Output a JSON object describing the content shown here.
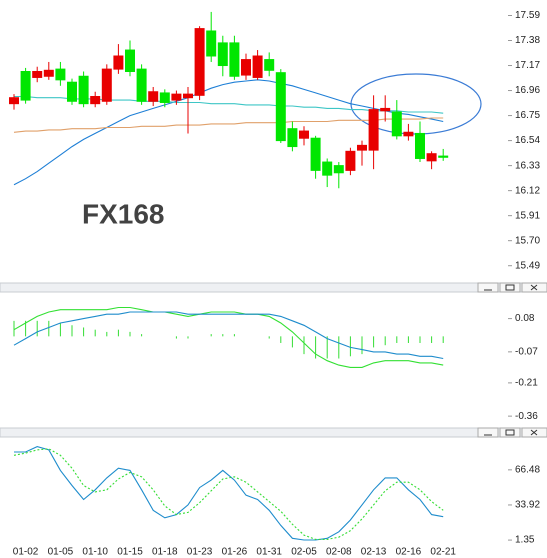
{
  "chart_data": [
    {
      "type": "candlestick",
      "watermark": "FX168",
      "ylim": [
        15.37,
        17.72
      ],
      "yticks": [
        17.59,
        17.38,
        17.17,
        16.96,
        16.75,
        16.54,
        16.33,
        16.12,
        15.91,
        {
          "value": 15.7,
          "label": "15.70"
        },
        15.49
      ],
      "up_color": "#e80000",
      "down_color": "#00e600",
      "open": [
        16.85,
        17.12,
        17.07,
        17.08,
        17.14,
        17.03,
        17.08,
        16.85,
        16.87,
        17.14,
        17.3,
        17.14,
        16.87,
        16.94,
        16.88,
        16.9,
        16.92,
        17.46,
        17.36,
        17.36,
        17.09,
        17.07,
        17.22,
        17.11,
        16.64,
        16.56,
        16.56,
        16.36,
        16.33,
        16.29,
        16.46,
        16.46,
        16.79,
        16.78,
        16.58,
        16.6,
        16.37,
        16.41
      ],
      "high": [
        16.93,
        17.15,
        17.16,
        17.2,
        17.2,
        17.06,
        17.12,
        16.95,
        17.18,
        17.35,
        17.38,
        17.18,
        16.99,
        16.97,
        16.96,
        16.99,
        17.5,
        17.62,
        17.42,
        17.42,
        17.27,
        17.3,
        17.28,
        17.14,
        16.7,
        16.66,
        16.58,
        16.39,
        16.36,
        16.48,
        16.54,
        16.92,
        16.92,
        16.88,
        16.68,
        16.7,
        16.45,
        16.47
      ],
      "low": [
        16.8,
        16.85,
        17.03,
        17.05,
        17.0,
        16.84,
        16.82,
        16.82,
        16.84,
        17.1,
        17.08,
        16.84,
        16.83,
        16.82,
        16.84,
        16.6,
        16.88,
        17.2,
        17.08,
        17.05,
        17.05,
        17.05,
        17.08,
        16.52,
        16.45,
        16.5,
        16.22,
        16.15,
        16.14,
        16.25,
        16.33,
        16.3,
        16.7,
        16.55,
        16.54,
        16.36,
        16.3,
        16.37
      ],
      "close": [
        16.9,
        16.88,
        17.12,
        17.13,
        17.05,
        16.87,
        16.85,
        16.91,
        17.14,
        17.25,
        17.12,
        16.87,
        16.95,
        16.86,
        16.93,
        16.93,
        17.48,
        17.25,
        17.17,
        17.08,
        17.22,
        17.25,
        17.13,
        16.54,
        16.49,
        16.62,
        16.29,
        16.25,
        16.27,
        16.45,
        16.5,
        16.8,
        16.81,
        16.58,
        16.61,
        16.39,
        16.43,
        16.4
      ],
      "series": [
        {
          "color": "#1e7fd6",
          "values": [
            16.17,
            16.22,
            16.28,
            16.35,
            16.42,
            16.49,
            16.55,
            16.6,
            16.65,
            16.7,
            16.75,
            16.78,
            16.81,
            16.84,
            16.87,
            16.9,
            16.94,
            16.98,
            17.01,
            17.03,
            17.04,
            17.05,
            17.04,
            17.02,
            17.0,
            16.97,
            16.94,
            16.91,
            16.88,
            16.85,
            16.83,
            16.81,
            16.79,
            16.77,
            16.76,
            16.74,
            16.72,
            16.7
          ]
        },
        {
          "color": "#3ec6c6",
          "values": [
            16.91,
            16.91,
            16.9,
            16.9,
            16.9,
            16.89,
            16.89,
            16.89,
            16.88,
            16.88,
            16.88,
            16.87,
            16.87,
            16.87,
            16.86,
            16.86,
            16.86,
            16.85,
            16.85,
            16.85,
            16.84,
            16.84,
            16.84,
            16.83,
            16.83,
            16.82,
            16.82,
            16.81,
            16.81,
            16.8,
            16.8,
            16.79,
            16.79,
            16.79,
            16.78,
            16.78,
            16.78,
            16.77
          ]
        },
        {
          "color": "#e0a06a",
          "values": [
            16.61,
            16.62,
            16.62,
            16.63,
            16.63,
            16.64,
            16.64,
            16.64,
            16.65,
            16.65,
            16.65,
            16.66,
            16.66,
            16.66,
            16.67,
            16.67,
            16.67,
            16.68,
            16.68,
            16.68,
            16.69,
            16.69,
            16.69,
            16.69,
            16.7,
            16.7,
            16.7,
            16.7,
            16.71,
            16.71,
            16.71,
            16.71,
            16.72,
            16.72,
            16.72,
            16.72,
            16.73,
            16.73
          ]
        }
      ]
    },
    {
      "type": "macd",
      "ylim": [
        -0.4,
        0.2
      ],
      "yticks": [
        0.08,
        -0.07,
        -0.21,
        -0.36
      ],
      "histogram_color": "#33dd33",
      "histogram": [
        0.07,
        0.07,
        0.07,
        0.07,
        0.06,
        0.05,
        0.04,
        0.03,
        0.02,
        0.03,
        0.02,
        0.01,
        0,
        0,
        -0.01,
        -0.01,
        0,
        0.01,
        0.01,
        0.01,
        0,
        0,
        -0.01,
        -0.03,
        -0.05,
        -0.08,
        -0.1,
        -0.1,
        -0.1,
        -0.09,
        -0.08,
        -0.05,
        -0.04,
        -0.03,
        -0.03,
        -0.03,
        -0.03,
        -0.03
      ],
      "series": [
        {
          "color": "#33e033",
          "values": [
            0.03,
            0.06,
            0.09,
            0.11,
            0.12,
            0.12,
            0.12,
            0.12,
            0.12,
            0.13,
            0.13,
            0.12,
            0.11,
            0.11,
            0.1,
            0.09,
            0.1,
            0.11,
            0.11,
            0.11,
            0.1,
            0.1,
            0.09,
            0.06,
            0.02,
            -0.03,
            -0.08,
            -0.11,
            -0.13,
            -0.14,
            -0.14,
            -0.12,
            -0.11,
            -0.11,
            -0.11,
            -0.12,
            -0.12,
            -0.13
          ]
        },
        {
          "color": "#1e8ccc",
          "values": [
            -0.04,
            -0.01,
            0.02,
            0.04,
            0.06,
            0.07,
            0.08,
            0.09,
            0.1,
            0.1,
            0.11,
            0.11,
            0.11,
            0.11,
            0.11,
            0.1,
            0.1,
            0.1,
            0.1,
            0.1,
            0.1,
            0.1,
            0.1,
            0.09,
            0.07,
            0.05,
            0.02,
            -0.01,
            -0.03,
            -0.05,
            -0.06,
            -0.07,
            -0.07,
            -0.08,
            -0.08,
            -0.09,
            -0.09,
            -0.1
          ]
        }
      ]
    },
    {
      "type": "line",
      "ylim": [
        -6,
        96
      ],
      "yticks": [
        66.48,
        33.92,
        1.35
      ],
      "categories": [
        null,
        "01-02",
        null,
        null,
        "01-05",
        null,
        null,
        "01-10",
        null,
        null,
        "01-15",
        null,
        null,
        "01-18",
        null,
        null,
        "01-23",
        null,
        null,
        "01-26",
        null,
        null,
        "01-31",
        null,
        null,
        "02-05",
        null,
        null,
        "02-08",
        null,
        null,
        "02-13",
        null,
        null,
        "02-16",
        null,
        null,
        "02-21"
      ],
      "series": [
        {
          "color": "#1e8ccc",
          "style": "solid",
          "values": [
            83,
            83,
            88,
            85,
            66,
            52,
            39,
            48,
            59,
            68,
            66,
            48,
            29,
            22,
            25,
            34,
            50,
            57,
            66,
            57,
            43,
            39,
            29,
            15,
            3,
            1.4,
            1.4,
            3,
            9,
            20,
            34,
            48,
            59,
            59,
            48,
            39,
            25,
            23
          ]
        },
        {
          "color": "#33dd33",
          "style": "dotted",
          "values": [
            80,
            82,
            85,
            86,
            80,
            68,
            52,
            46,
            48,
            58,
            64,
            60,
            48,
            33,
            25,
            27,
            36,
            47,
            58,
            60,
            55,
            46,
            37,
            28,
            16,
            6,
            2,
            2,
            4,
            10,
            21,
            34,
            47,
            55,
            55,
            48,
            37,
            29
          ]
        }
      ]
    }
  ]
}
